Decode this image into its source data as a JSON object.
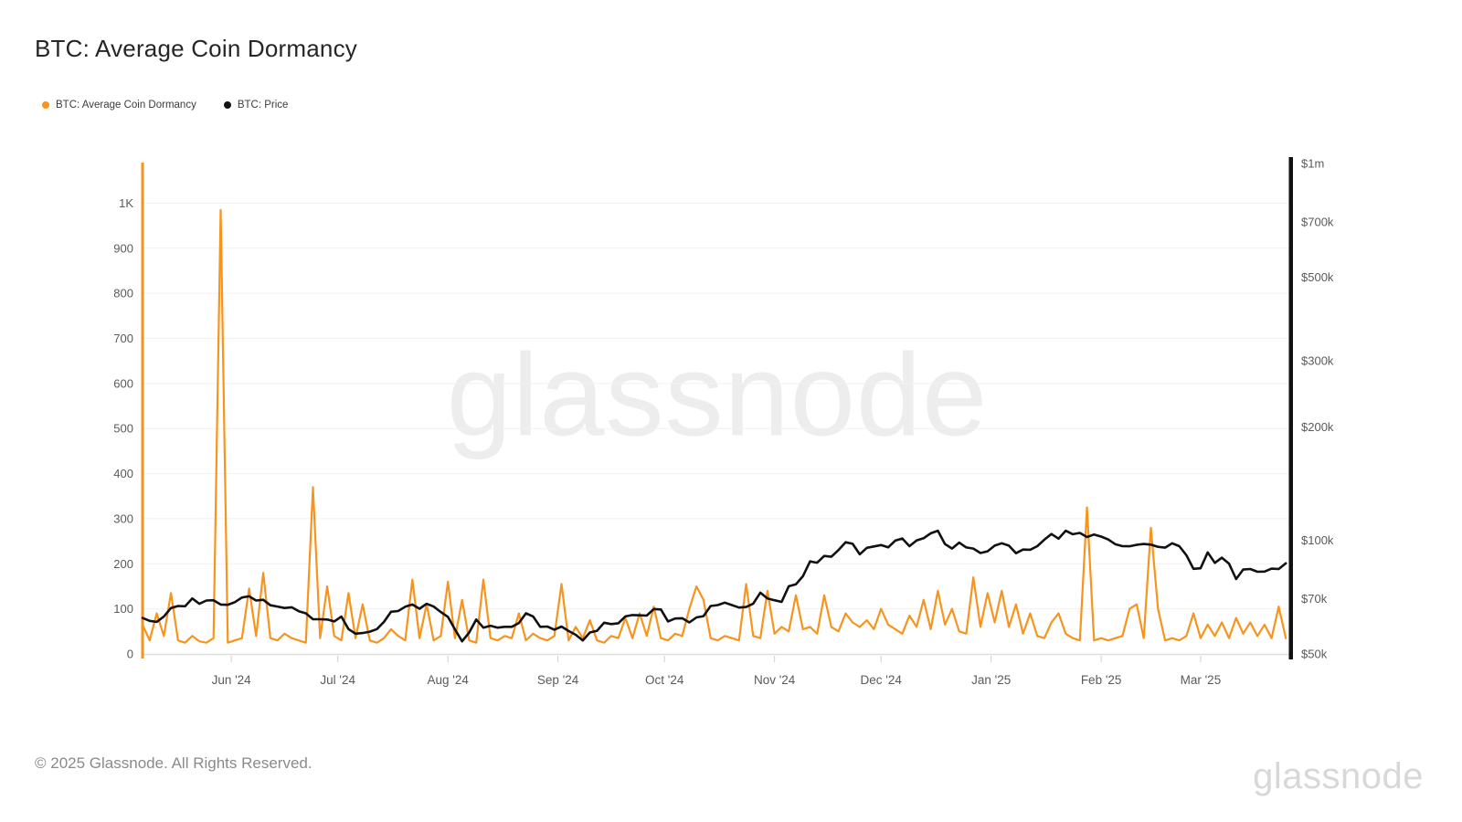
{
  "page": {
    "title": "BTC: Average Coin Dormancy"
  },
  "legend": {
    "items": [
      {
        "label": "BTC: Average Coin Dormancy",
        "color": "#f7941d"
      },
      {
        "label": "BTC: Price",
        "color": "#111111"
      }
    ]
  },
  "watermark": {
    "text": "glassnode"
  },
  "footer": {
    "copyright": "© 2025 Glassnode. All Rights Reserved.",
    "brand": "glassnode"
  },
  "colors": {
    "dormancy_line": "#f7941d",
    "price_line": "#111111",
    "gridline": "#f1f1f1",
    "axis_baseline": "#dedede",
    "month_tick": "#cfcfcf",
    "tick_text": "#5a5a5a",
    "watermark": "#ededed",
    "background": "#ffffff"
  },
  "chart_data": {
    "type": "line",
    "title": "BTC: Average Coin Dormancy",
    "legend_position": "top-left",
    "grid": "horizontal",
    "x_start_date": "2024-05-07",
    "x_step_days": 2,
    "x_domain_days": [
      0,
      323.5
    ],
    "x_ticks": [
      {
        "label": "Jun '24",
        "day": 25
      },
      {
        "label": "Jul '24",
        "day": 55
      },
      {
        "label": "Aug '24",
        "day": 86
      },
      {
        "label": "Sep '24",
        "day": 117
      },
      {
        "label": "Oct '24",
        "day": 147
      },
      {
        "label": "Nov '24",
        "day": 178
      },
      {
        "label": "Dec '24",
        "day": 208
      },
      {
        "label": "Jan '25",
        "day": 239
      },
      {
        "label": "Feb '25",
        "day": 270
      },
      {
        "label": "Mar '25",
        "day": 298
      }
    ],
    "left_axis": {
      "series": "BTC: Average Coin Dormancy",
      "scale": "linear",
      "min": 0,
      "max": 1088,
      "axis_color": "#f7941d",
      "ticks": [
        {
          "label": "0",
          "value": 0
        },
        {
          "label": "100",
          "value": 100
        },
        {
          "label": "200",
          "value": 200
        },
        {
          "label": "300",
          "value": 300
        },
        {
          "label": "400",
          "value": 400
        },
        {
          "label": "500",
          "value": 500
        },
        {
          "label": "600",
          "value": 600
        },
        {
          "label": "700",
          "value": 700
        },
        {
          "label": "800",
          "value": 800
        },
        {
          "label": "900",
          "value": 900
        },
        {
          "label": "1K",
          "value": 1000
        }
      ]
    },
    "right_axis": {
      "series": "BTC: Price",
      "scale": "log",
      "min": 50000,
      "max": 1000000,
      "axis_color": "#111111",
      "ticks": [
        {
          "label": "$50k",
          "value": 50000
        },
        {
          "label": "$70k",
          "value": 70000
        },
        {
          "label": "$100k",
          "value": 100000
        },
        {
          "label": "$200k",
          "value": 200000
        },
        {
          "label": "$300k",
          "value": 300000
        },
        {
          "label": "$500k",
          "value": 500000
        },
        {
          "label": "$700k",
          "value": 700000
        },
        {
          "label": "$1m",
          "value": 1000000
        }
      ]
    },
    "series": [
      {
        "name": "BTC: Average Coin Dormancy",
        "axis": "left",
        "color": "#f7941d",
        "values": [
          65,
          30,
          90,
          40,
          135,
          30,
          25,
          40,
          28,
          25,
          35,
          985,
          25,
          30,
          35,
          145,
          40,
          180,
          35,
          30,
          45,
          35,
          30,
          25,
          370,
          35,
          150,
          40,
          30,
          135,
          35,
          110,
          30,
          25,
          35,
          55,
          40,
          30,
          165,
          35,
          110,
          30,
          40,
          160,
          35,
          120,
          30,
          25,
          165,
          35,
          30,
          40,
          35,
          90,
          30,
          45,
          35,
          30,
          40,
          155,
          30,
          60,
          35,
          75,
          30,
          25,
          40,
          35,
          80,
          35,
          90,
          40,
          105,
          35,
          30,
          45,
          40,
          100,
          150,
          120,
          35,
          30,
          40,
          35,
          30,
          155,
          40,
          35,
          140,
          45,
          60,
          50,
          130,
          55,
          60,
          45,
          130,
          60,
          50,
          90,
          70,
          60,
          75,
          55,
          100,
          65,
          55,
          45,
          85,
          60,
          120,
          55,
          140,
          65,
          100,
          50,
          45,
          170,
          60,
          135,
          70,
          140,
          60,
          110,
          45,
          90,
          40,
          35,
          70,
          90,
          45,
          35,
          30,
          325,
          30,
          35,
          30,
          35,
          40,
          100,
          110,
          35,
          280,
          100,
          30,
          35,
          30,
          40,
          90,
          35,
          65,
          40,
          70,
          35,
          80,
          45,
          70,
          40,
          65,
          35,
          105,
          35
        ]
      },
      {
        "name": "BTC: Price",
        "axis": "right",
        "color": "#111111",
        "values": [
          62300,
          61200,
          60800,
          62800,
          66200,
          67000,
          66900,
          70200,
          67900,
          69300,
          69400,
          67600,
          67500,
          68600,
          70600,
          71100,
          69300,
          69600,
          67300,
          66800,
          66200,
          66500,
          64900,
          64100,
          61800,
          61800,
          61700,
          61000,
          62800,
          58200,
          56600,
          56800,
          57300,
          58200,
          60800,
          64700,
          65000,
          66700,
          67600,
          65900,
          67900,
          66800,
          64600,
          62700,
          58100,
          54000,
          57000,
          61700,
          58700,
          59400,
          58700,
          59000,
          59000,
          60400,
          64100,
          62900,
          59000,
          59100,
          58000,
          59100,
          57500,
          56200,
          54300,
          57000,
          57600,
          60500,
          60000,
          60300,
          62900,
          63400,
          63300,
          63200,
          65800,
          65600,
          61000,
          62100,
          62200,
          60600,
          62500,
          63000,
          67000,
          67400,
          68400,
          67400,
          66400,
          66600,
          68000,
          72700,
          70200,
          69400,
          68700,
          75600,
          76500,
          80400,
          88000,
          87300,
          91000,
          90500,
          94300,
          98900,
          98000,
          91900,
          95600,
          96400,
          97200,
          95900,
          99900,
          101200,
          96600,
          100000,
          101400,
          104500,
          106100,
          97800,
          95200,
          98700,
          95800,
          95200,
          92600,
          93600,
          96900,
          98300,
          96900,
          92500,
          94600,
          94500,
          96600,
          100500,
          104000,
          101100,
          106100,
          103900,
          104700,
          102100,
          103700,
          102400,
          100600,
          97700,
          96600,
          96500,
          97400,
          97900,
          97500,
          96200,
          95700,
          98300,
          96600,
          91400,
          84100,
          84400,
          93000,
          87200,
          90000,
          86800,
          79000,
          83700,
          84000,
          82600,
          82700,
          84200,
          84000,
          87000
        ]
      }
    ]
  }
}
